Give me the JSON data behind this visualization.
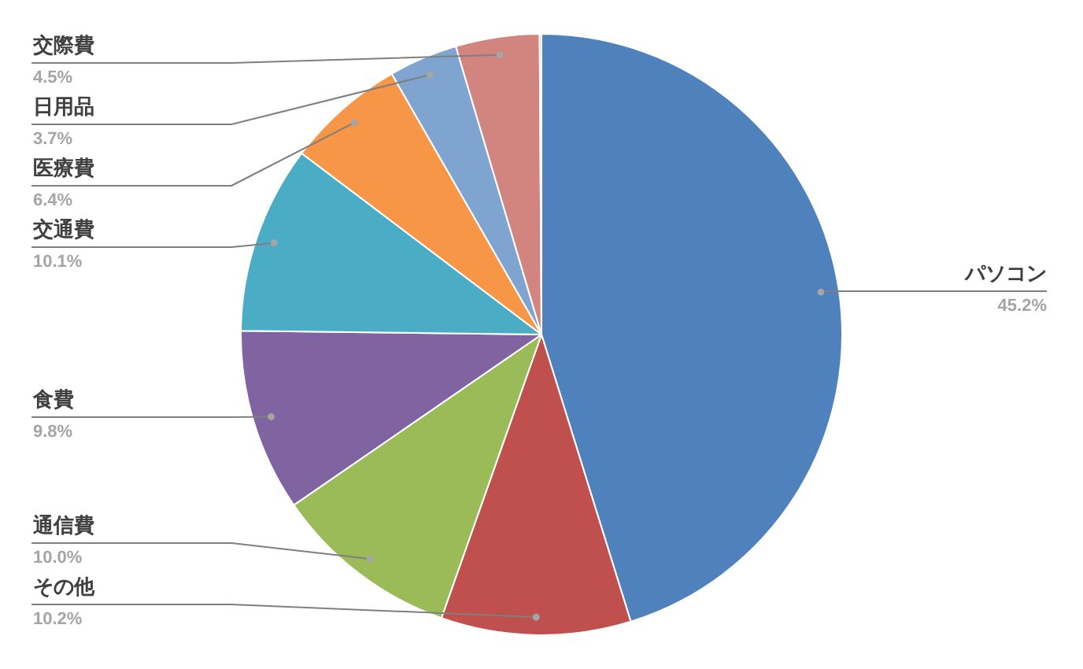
{
  "chart_data": {
    "type": "pie",
    "categories": [
      "パソコン",
      "その他",
      "通信費",
      "食費",
      "交通費",
      "医療費",
      "日用品",
      "交際費",
      null
    ],
    "values": [
      45.2,
      10.2,
      10.0,
      9.8,
      10.1,
      6.4,
      3.7,
      4.5,
      0.1
    ],
    "value_labels": [
      "45.2%",
      "10.2%",
      "10.0%",
      "9.8%",
      "10.1%",
      "6.4%",
      "3.7%",
      "4.5%",
      null
    ],
    "colors": [
      "#4f81bd",
      "#c0504d",
      "#9bbb59",
      "#8064a2",
      "#4bacc6",
      "#f79646",
      "#7fa4d0",
      "#d2847f",
      "#9bbb59"
    ],
    "legend": false
  }
}
